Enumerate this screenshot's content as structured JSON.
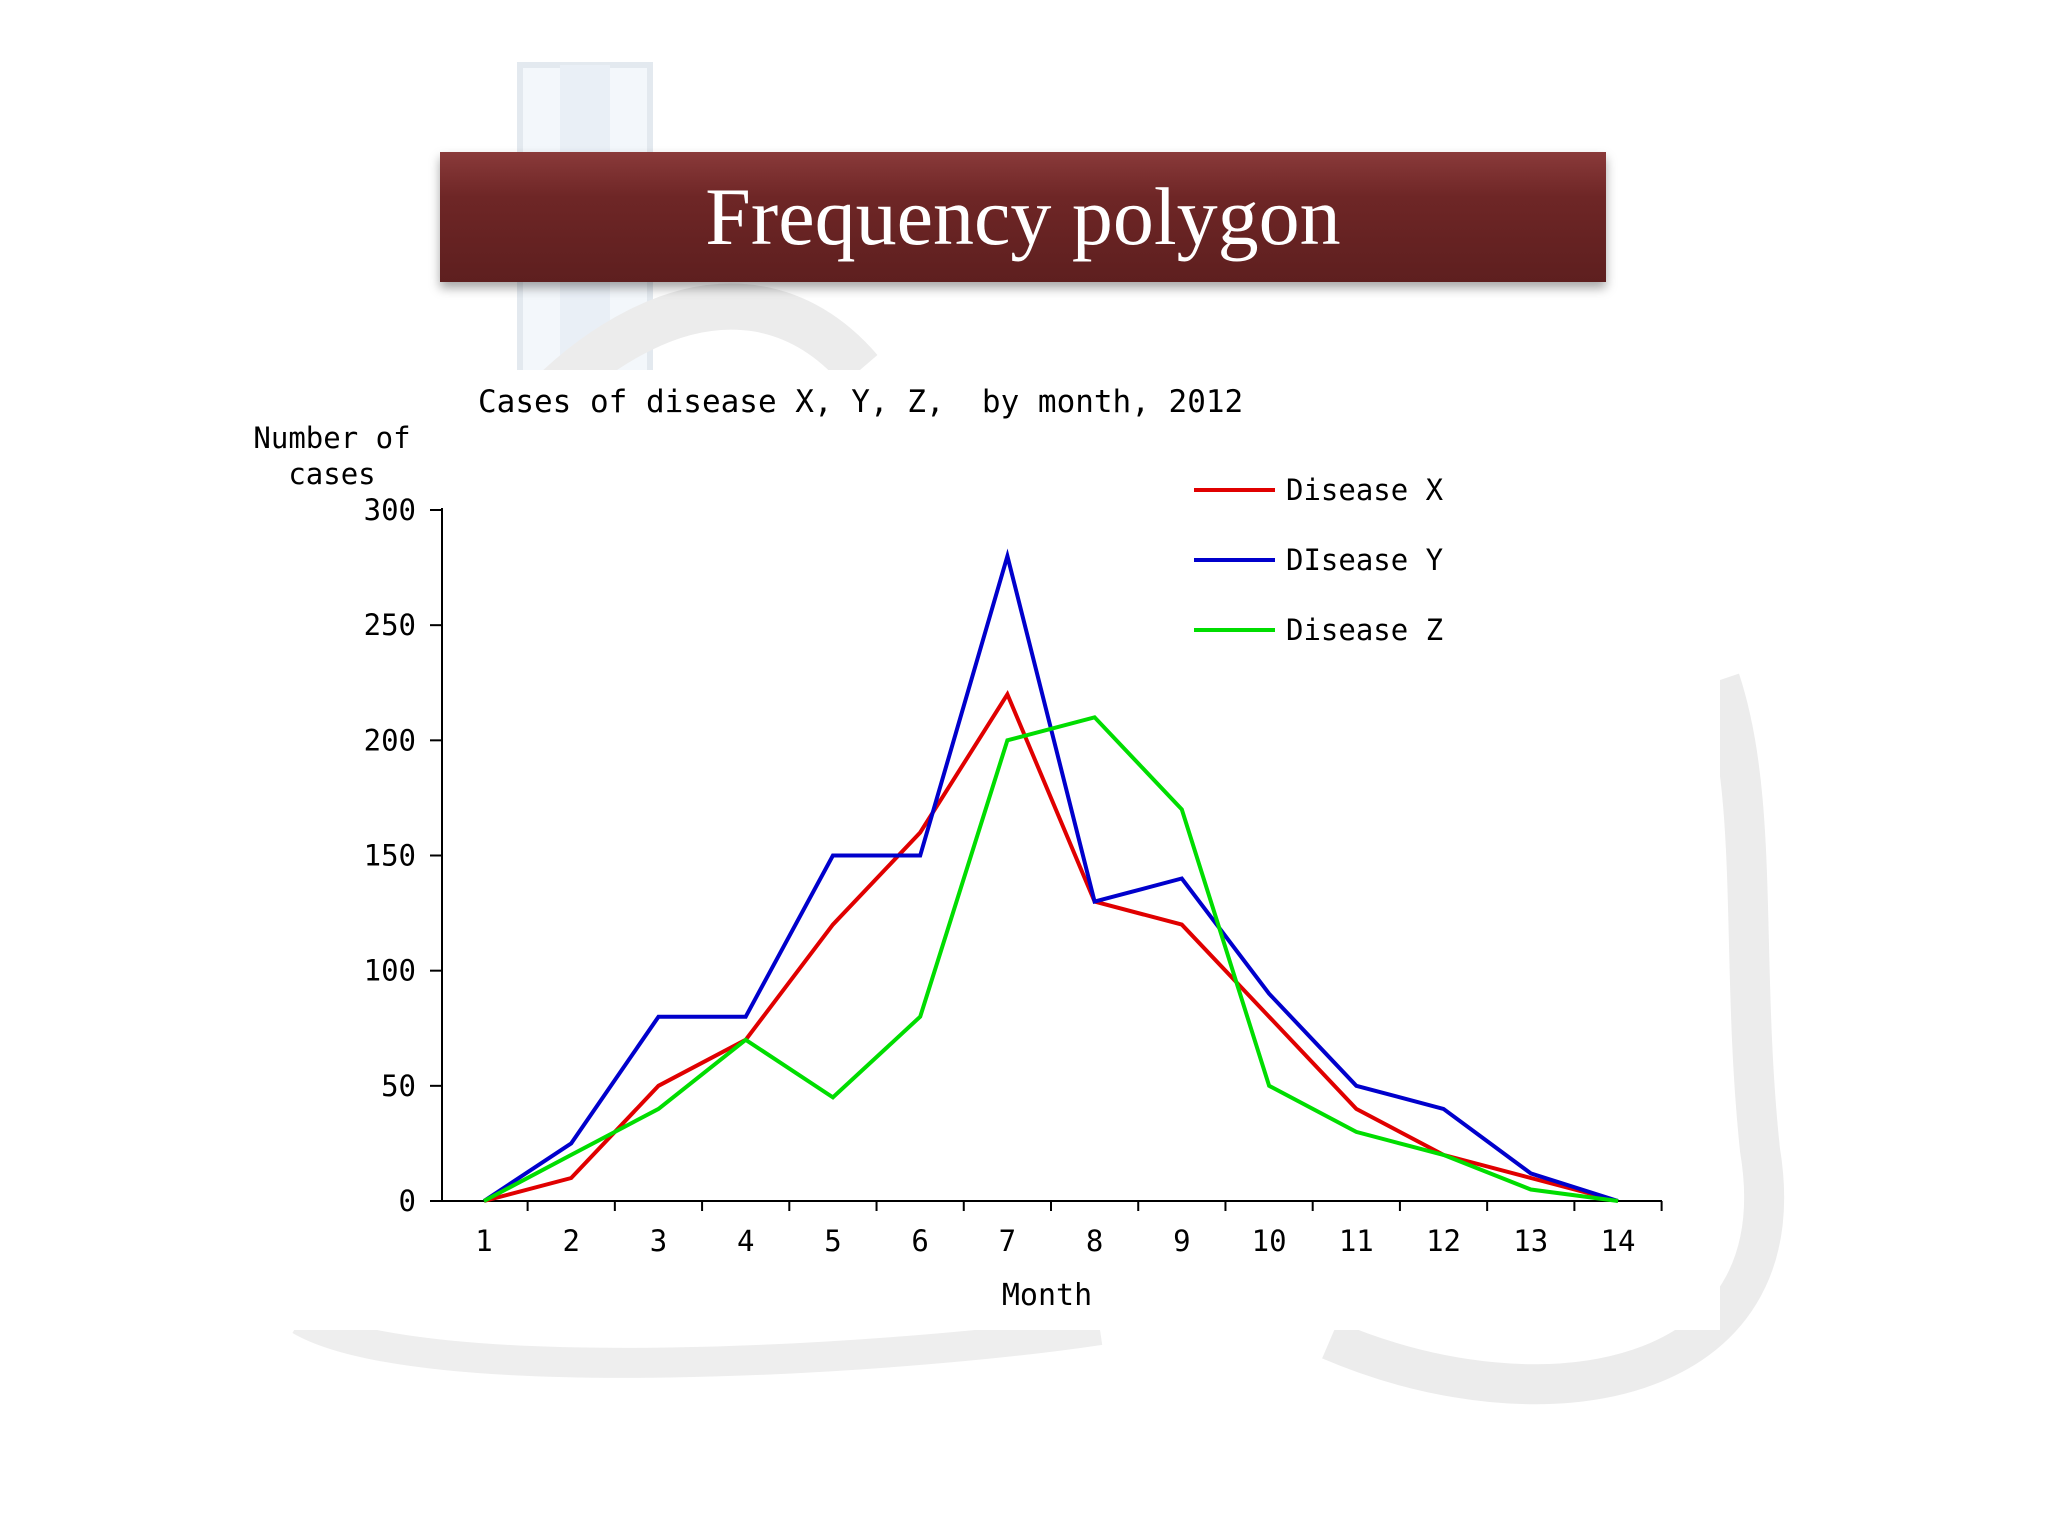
{
  "slide": {
    "title": "Frequency polygon"
  },
  "chart_data": {
    "type": "line",
    "title": "Cases of disease X, Y, Z,  by month, 2012",
    "xlabel": "Month",
    "ylabel_line1": "Number of",
    "ylabel_line2": "cases",
    "x": [
      1,
      2,
      3,
      4,
      5,
      6,
      7,
      8,
      9,
      10,
      11,
      12,
      13,
      14
    ],
    "ylim": [
      0,
      300
    ],
    "yticks": [
      0,
      50,
      100,
      150,
      200,
      250,
      300
    ],
    "grid": false,
    "legend_position": "top-right",
    "series": [
      {
        "name": "Disease X",
        "color": "#e00000",
        "values": [
          0,
          10,
          50,
          70,
          120,
          160,
          220,
          130,
          120,
          80,
          40,
          20,
          10,
          0
        ]
      },
      {
        "name": "DIsease Y",
        "color": "#0000cc",
        "values": [
          0,
          25,
          80,
          80,
          150,
          150,
          280,
          130,
          140,
          90,
          50,
          40,
          12,
          0
        ]
      },
      {
        "name": "Disease Z",
        "color": "#00dd00",
        "values": [
          0,
          20,
          40,
          70,
          45,
          80,
          200,
          210,
          170,
          50,
          30,
          20,
          5,
          0
        ]
      }
    ]
  }
}
